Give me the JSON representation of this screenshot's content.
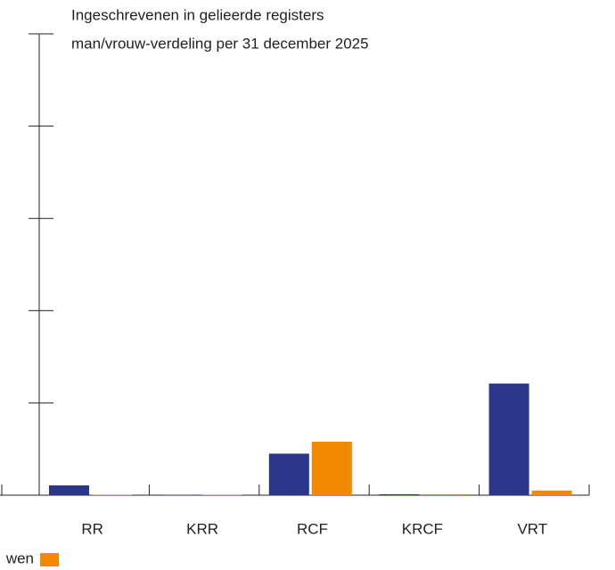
{
  "chart_data": {
    "type": "bar",
    "title": "Ingeschrevenen in gelieerde registers",
    "subtitle": "man/vrouw-verdeling per 31 december 2025",
    "categories": [
      "RR",
      "KRR",
      "RCF",
      "KRCF",
      "VRT"
    ],
    "series": [
      {
        "color": "#2b3589",
        "values": [
          10.6,
          0.5,
          45,
          1,
          121
        ]
      },
      {
        "name": "wen",
        "color": "#f28a00",
        "values": [
          0.5,
          0.5,
          58,
          1,
          5
        ]
      }
    ],
    "ylim": [
      0,
      500
    ],
    "yticks": [
      0,
      100,
      200,
      300,
      400,
      500
    ]
  }
}
